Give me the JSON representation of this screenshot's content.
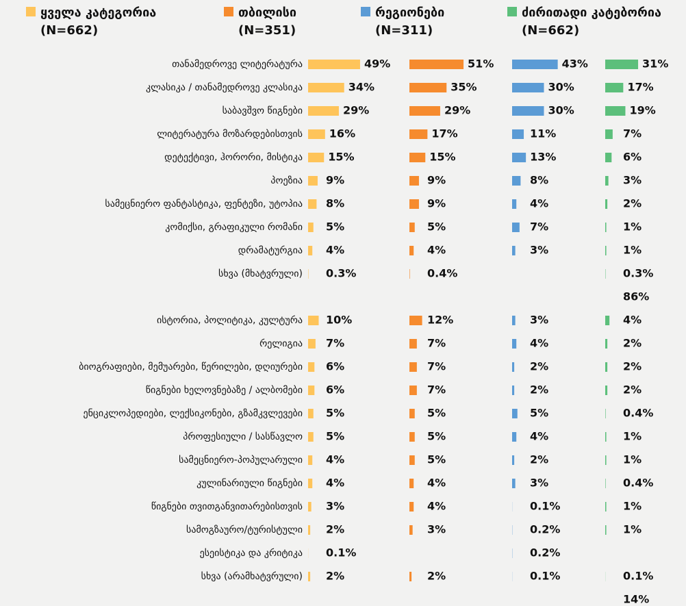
{
  "chart_data": {
    "type": "bar",
    "categories": [
      "თანამედროვე ლიტერატურა",
      "კლასიკა / თანამედროვე კლასიკა",
      "საბავშვო წიგნები",
      "ლიტერატურა მოზარდებისთვის",
      "დეტექტივი, ჰორორი, მისტიკა",
      "პოეზია",
      "სამეცნიერო ფანტასტიკა, ფენტეზი, უტოპია",
      "კომიქსი, გრაფიკული რომანი",
      "დრამატურგია",
      "სხვა (მხატვრული)",
      "ისტორია, პოლიტიკა, კულტურა",
      "რელიგია",
      "ბიოგრაფიები, მემუარები, წერილები, დღიურები",
      "წიგნები ხელოვნებაზე / ალბომები",
      "ენციკლოპედიები, ლექსიკონები, გზამკვლევები",
      "პროფესიული / სასწავლო",
      "სამეცნიერო-პოპულარული",
      "კულინარიული წიგნები",
      "წიგნები თვითგანვითარებისთვის",
      "სამოგზაურო/ტურისტული",
      "ესეისტიკა და კრიტიკა",
      "სხვა (არამხატვრული)"
    ],
    "series": [
      {
        "name": "ყველა კატეგორია (N=662)",
        "color": "#fec45a",
        "values": [
          49,
          34,
          29,
          16,
          15,
          9,
          8,
          5,
          4,
          0.3,
          10,
          7,
          6,
          6,
          5,
          5,
          4,
          4,
          3,
          2,
          0.1,
          2
        ],
        "value_labels": [
          "49%",
          "34%",
          "29%",
          "16%",
          "15%",
          "9%",
          "8%",
          "5%",
          "4%",
          "0.3%",
          "10%",
          "7%",
          "6%",
          "6%",
          "5%",
          "5%",
          "4%",
          "4%",
          "3%",
          "2%",
          "0.1%",
          "2%"
        ]
      },
      {
        "name": "თბილისი (N=351)",
        "color": "#f68b2e",
        "values": [
          51,
          35,
          29,
          17,
          15,
          9,
          9,
          5,
          4,
          0.4,
          12,
          7,
          7,
          7,
          5,
          5,
          5,
          4,
          4,
          3,
          null,
          2
        ],
        "value_labels": [
          "51%",
          "35%",
          "29%",
          "17%",
          "15%",
          "9%",
          "9%",
          "5%",
          "4%",
          "0.4%",
          "12%",
          "7%",
          "7%",
          "7%",
          "5%",
          "5%",
          "5%",
          "4%",
          "4%",
          "3%",
          null,
          "2%"
        ]
      },
      {
        "name": "რეგიონები (N=311)",
        "color": "#5b9bd5",
        "values": [
          43,
          30,
          30,
          11,
          13,
          8,
          4,
          7,
          3,
          null,
          3,
          4,
          2,
          2,
          5,
          4,
          2,
          3,
          0.1,
          0.2,
          0.2,
          0.1
        ],
        "value_labels": [
          "43%",
          "30%",
          "30%",
          "11%",
          "13%",
          "8%",
          "4%",
          "7%",
          "3%",
          null,
          "3%",
          "4%",
          "2%",
          "2%",
          "5%",
          "4%",
          "2%",
          "3%",
          "0.1%",
          "0.2%",
          "0.2%",
          "0.1%"
        ]
      },
      {
        "name": "ძირითადი კატებორია (N=662)",
        "color": "#5cbf7b",
        "values": [
          31,
          17,
          19,
          7,
          6,
          3,
          2,
          1,
          1,
          0.3,
          4,
          2,
          2,
          2,
          0.4,
          1,
          1,
          0.4,
          1,
          1,
          null,
          0.1
        ],
        "value_labels": [
          "31%",
          "17%",
          "19%",
          "7%",
          "6%",
          "3%",
          "2%",
          "1%",
          "1%",
          "0.3%",
          "4%",
          "2%",
          "2%",
          "2%",
          "0.4%",
          "1%",
          "1%",
          "0.4%",
          "1%",
          "1%",
          null,
          "0.1%"
        ]
      }
    ],
    "group_totals": [
      "86%",
      "14%"
    ]
  }
}
